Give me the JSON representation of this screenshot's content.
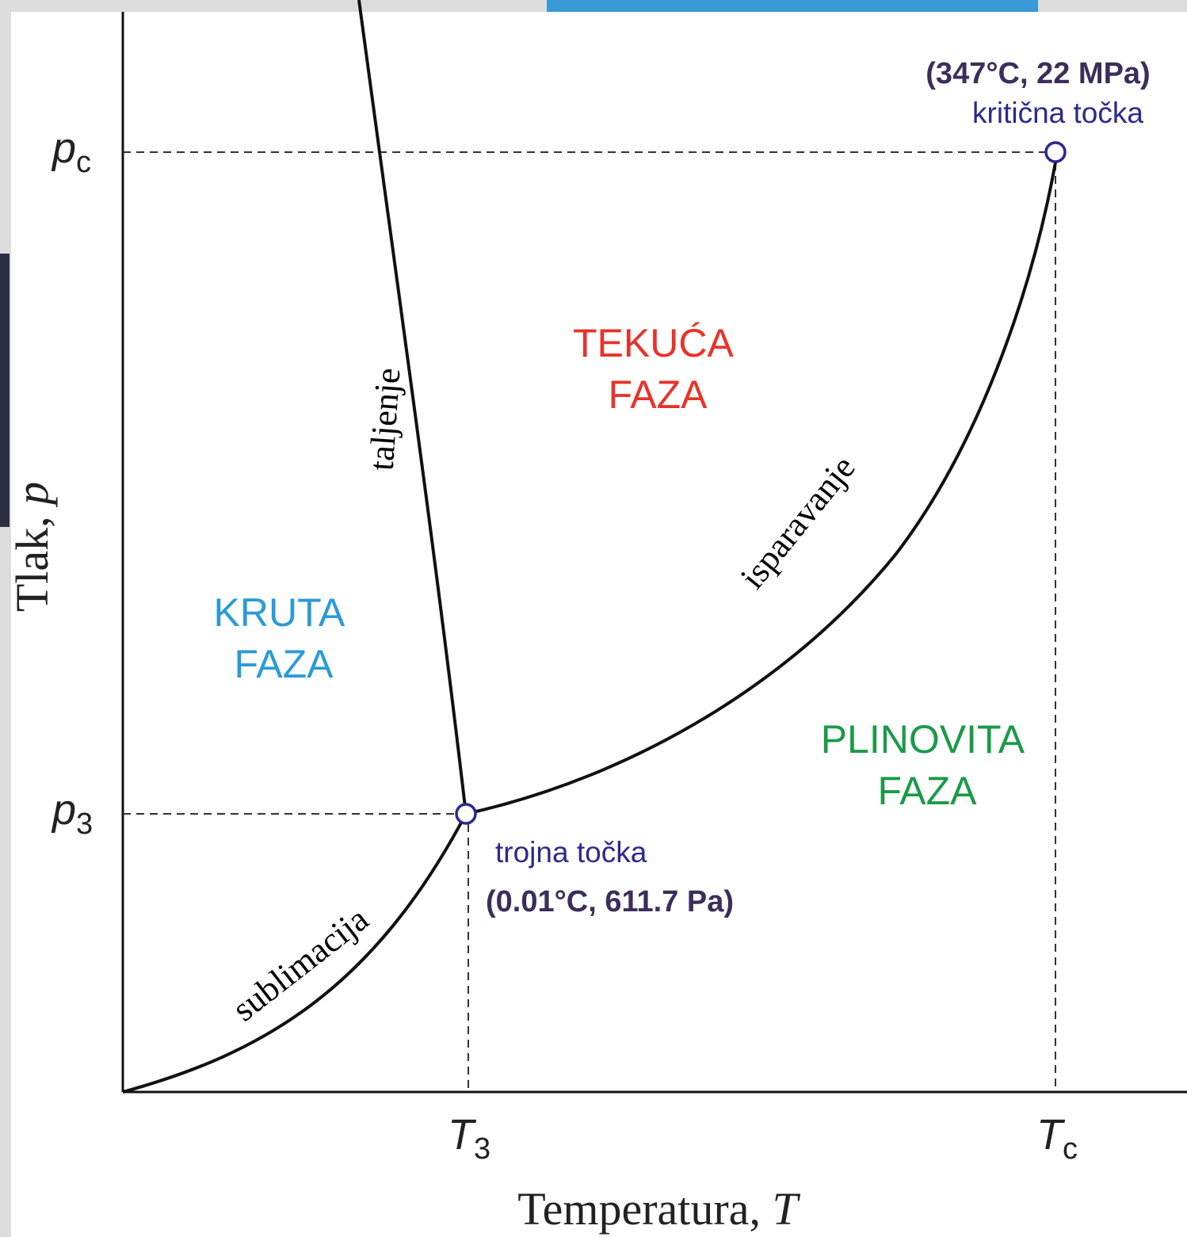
{
  "axes": {
    "y_label": "Tlak,",
    "y_symbol": "p",
    "x_label": "Temperatura,",
    "x_symbol": "T"
  },
  "ticks": {
    "pc": {
      "symbol": "p",
      "sub": "c"
    },
    "p3": {
      "symbol": "p",
      "sub": "3"
    },
    "t3": {
      "symbol": "T",
      "sub": "3"
    },
    "tc": {
      "symbol": "T",
      "sub": "c"
    }
  },
  "regions": {
    "liquid": [
      "TEKUĆA",
      "FAZA"
    ],
    "solid": [
      "KRUTA",
      "FAZA"
    ],
    "gas": [
      "PLINOVITA",
      "FAZA"
    ]
  },
  "curves": {
    "melting": "taljenje",
    "vaporization": "isparavanje",
    "sublimation": "sublimacija"
  },
  "points": {
    "critical": {
      "coords": "(347°C, 22 MPa)",
      "name": "kritična točka"
    },
    "triple": {
      "name": "trojna točka",
      "coords": "(0.01°C, 611.7 Pa)"
    }
  }
}
